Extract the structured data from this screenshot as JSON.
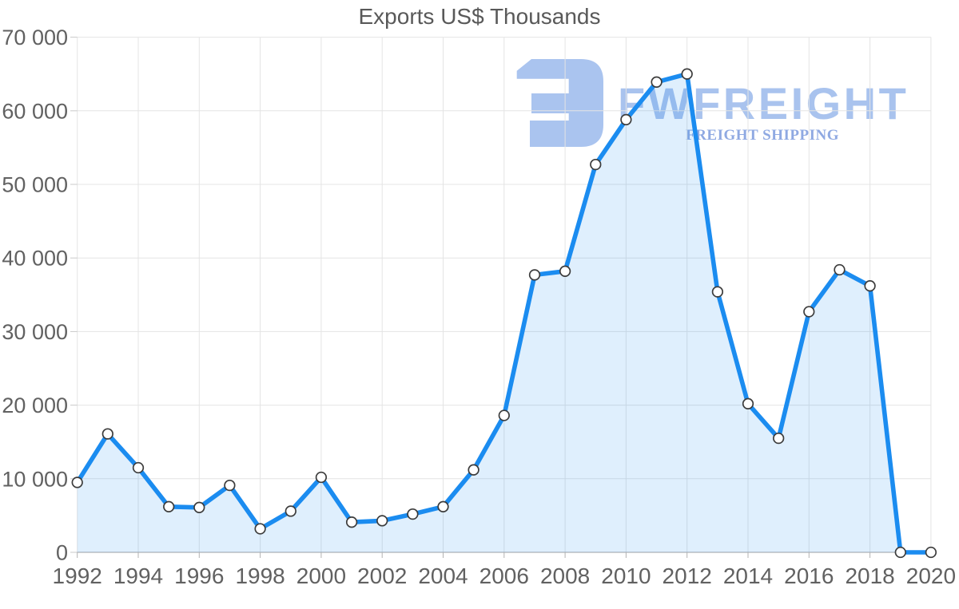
{
  "title": "Exports US$ Thousands",
  "watermark": {
    "brand": "FWFREIGHT",
    "tagline": "FREIGHT SHIPPING",
    "logo_color": "#aac4ef",
    "brand_color": "#a9c3ee",
    "tagline_color": "#8fa9e2"
  },
  "colors": {
    "line": "#1b8cf0",
    "area_fill": "rgba(27,140,240,0.14)",
    "marker_fill": "#ffffff",
    "marker_stroke": "#3c3c3c",
    "grid": "#e4e4e4",
    "axis_line": "#b3b3b3",
    "tick": "#c9c9c9",
    "label_text": "#616161",
    "title_text": "#595959"
  },
  "chart_data": {
    "type": "area",
    "title": "Exports US$ Thousands",
    "series_name": "Exports US$ Thousands",
    "x": [
      1992,
      1993,
      1994,
      1995,
      1996,
      1997,
      1998,
      1999,
      2000,
      2001,
      2002,
      2003,
      2004,
      2005,
      2006,
      2007,
      2008,
      2009,
      2010,
      2011,
      2012,
      2013,
      2014,
      2015,
      2016,
      2017,
      2018,
      2019,
      2020
    ],
    "values": [
      9500,
      16100,
      11500,
      6200,
      6100,
      9100,
      3200,
      5600,
      10200,
      4100,
      4300,
      5200,
      6200,
      11200,
      18600,
      37700,
      38200,
      52700,
      58800,
      63900,
      65000,
      35400,
      20200,
      15500,
      32700,
      38400,
      36200,
      0,
      0
    ],
    "xlabel": "",
    "ylabel": "",
    "ylim": [
      0,
      70000
    ],
    "ytick_step": 10000,
    "xtick_step": 2,
    "grid": true,
    "legend": "none",
    "marker": "circle",
    "xtick_labels": [
      "1992",
      "1994",
      "1996",
      "1998",
      "2000",
      "2002",
      "2004",
      "2006",
      "2008",
      "2010",
      "2012",
      "2014",
      "2016",
      "2018",
      "2020"
    ],
    "ytick_labels": [
      "0",
      "10 000",
      "20 000",
      "30 000",
      "40 000",
      "50 000",
      "60 000",
      "70 000"
    ]
  }
}
